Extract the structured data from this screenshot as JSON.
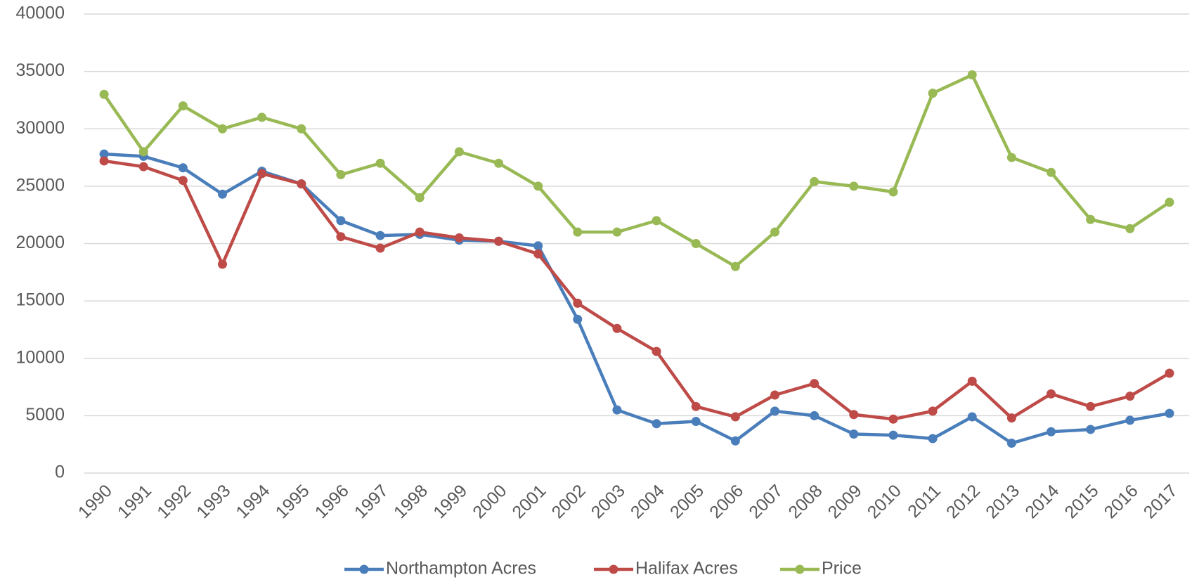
{
  "chart_data": {
    "type": "line",
    "categories": [
      "1990",
      "1991",
      "1992",
      "1993",
      "1994",
      "1995",
      "1996",
      "1997",
      "1998",
      "1999",
      "2000",
      "2001",
      "2002",
      "2003",
      "2004",
      "2005",
      "2006",
      "2007",
      "2008",
      "2009",
      "2010",
      "2011",
      "2012",
      "2013",
      "2014",
      "2015",
      "2016",
      "2017"
    ],
    "series": [
      {
        "name": "Northampton Acres",
        "color": "#4a7ebb",
        "values": [
          27800,
          27600,
          26600,
          24300,
          26300,
          25200,
          22000,
          20700,
          20800,
          20300,
          20200,
          19800,
          13400,
          5500,
          4300,
          4500,
          2800,
          5400,
          5000,
          3400,
          3300,
          3000,
          4900,
          2600,
          3600,
          3800,
          4600,
          5200
        ]
      },
      {
        "name": "Halifax Acres",
        "color": "#be4b48",
        "values": [
          27200,
          26700,
          25500,
          18200,
          26100,
          25200,
          20600,
          19600,
          21000,
          20500,
          20200,
          19100,
          14800,
          12600,
          10600,
          5800,
          4900,
          6800,
          7800,
          5100,
          4700,
          5400,
          8000,
          4800,
          6900,
          5800,
          6700,
          8700
        ]
      },
      {
        "name": "Price",
        "color": "#98b954",
        "values": [
          33000,
          28000,
          32000,
          30000,
          31000,
          30000,
          26000,
          27000,
          24000,
          28000,
          27000,
          25000,
          21000,
          21000,
          22000,
          20000,
          18000,
          21000,
          25400,
          25000,
          24500,
          33100,
          34700,
          27500,
          26200,
          22100,
          21300,
          23600
        ]
      }
    ],
    "ylim": [
      0,
      40000
    ],
    "yticks": [
      0,
      5000,
      10000,
      15000,
      20000,
      25000,
      30000,
      35000,
      40000
    ],
    "grid": true,
    "legend": "bottom"
  }
}
